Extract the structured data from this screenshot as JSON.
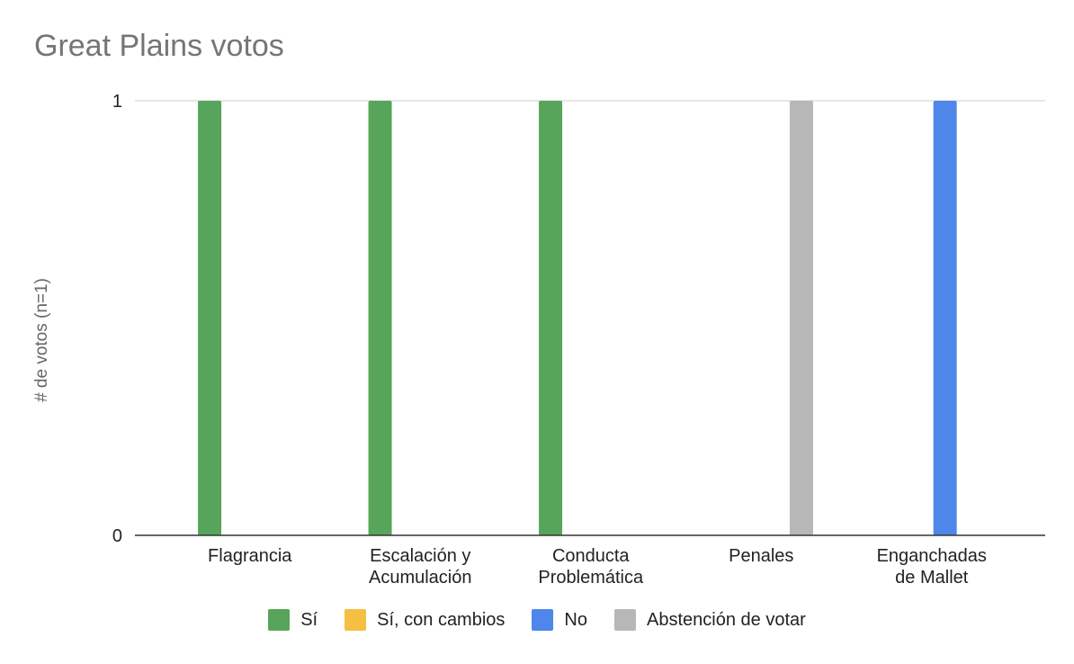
{
  "chart_data": {
    "type": "bar",
    "title": "Great Plains votos",
    "xlabel": "",
    "ylabel": "# de votos (n=1)",
    "ylim": [
      0,
      1
    ],
    "yticks": [
      "0",
      "1"
    ],
    "grid": true,
    "legend_position": "bottom",
    "categories": [
      [
        "Flagrancia"
      ],
      [
        "Escalación y",
        "Acumulación"
      ],
      [
        "Conducta",
        "Problemática"
      ],
      [
        "Penales"
      ],
      [
        "Enganchadas",
        "de Mallet"
      ]
    ],
    "series": [
      {
        "name": "Sí",
        "color": "#57a55a",
        "values": [
          1,
          1,
          1,
          0,
          0
        ]
      },
      {
        "name": "Sí, con cambios",
        "color": "#f4bf42",
        "values": [
          0,
          0,
          0,
          0,
          0
        ]
      },
      {
        "name": "No",
        "color": "#4e86ea",
        "values": [
          0,
          0,
          0,
          0,
          1
        ]
      },
      {
        "name": "Abstención de votar",
        "color": "#b7b7b7",
        "values": [
          0,
          0,
          0,
          1,
          0
        ]
      }
    ]
  }
}
